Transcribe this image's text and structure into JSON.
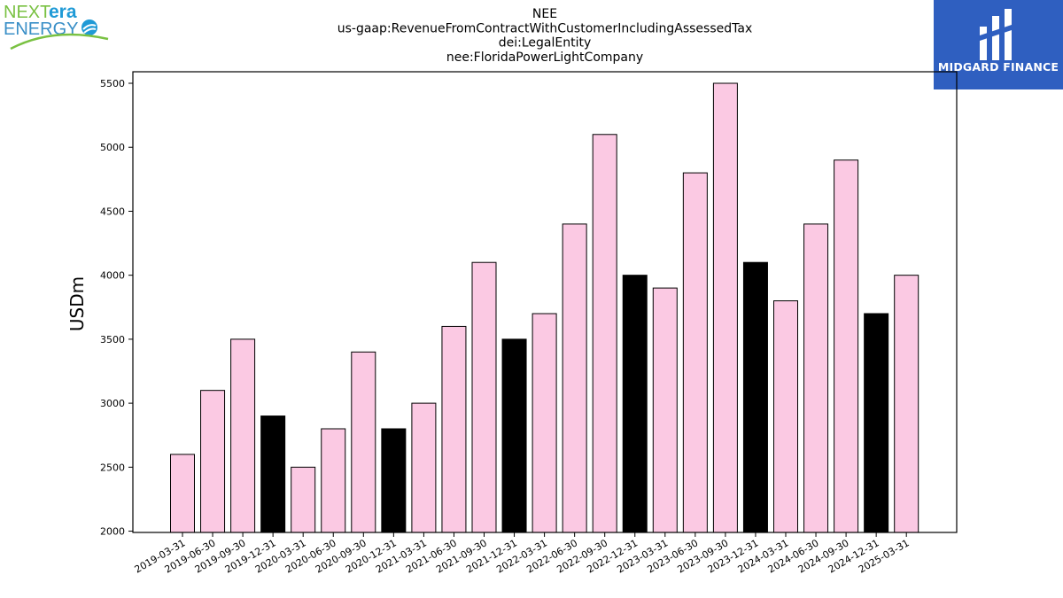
{
  "chart_data": {
    "type": "bar",
    "title_lines": [
      "NEE",
      "us-gaap:RevenueFromContractWithCustomerIncludingAssessedTax",
      "dei:LegalEntity",
      "nee:FloridaPowerLightCompany"
    ],
    "ylabel": "USDm",
    "ylim": [
      1990,
      5590
    ],
    "yticks": [
      2000,
      2500,
      3000,
      3500,
      4000,
      4500,
      5000,
      5500
    ],
    "categories": [
      "2019-03-31",
      "2019-06-30",
      "2019-09-30",
      "2019-12-31",
      "2020-03-31",
      "2020-06-30",
      "2020-09-30",
      "2020-12-31",
      "2021-03-31",
      "2021-06-30",
      "2021-09-30",
      "2021-12-31",
      "2022-03-31",
      "2022-06-30",
      "2022-09-30",
      "2022-12-31",
      "2023-03-31",
      "2023-06-30",
      "2023-09-30",
      "2023-12-31",
      "2024-03-31",
      "2024-06-30",
      "2024-09-30",
      "2024-12-31",
      "2025-03-31"
    ],
    "values": [
      2600,
      3100,
      3500,
      2900,
      2500,
      2800,
      3400,
      2800,
      3000,
      3600,
      4100,
      3500,
      3700,
      4400,
      5100,
      4000,
      3900,
      4800,
      5500,
      4100,
      3800,
      4400,
      4900,
      3700,
      4000
    ],
    "bar_colors": [
      "#fbc9e3",
      "#fbc9e3",
      "#fbc9e3",
      "#000000",
      "#fbc9e3",
      "#fbc9e3",
      "#fbc9e3",
      "#000000",
      "#fbc9e3",
      "#fbc9e3",
      "#fbc9e3",
      "#000000",
      "#fbc9e3",
      "#fbc9e3",
      "#fbc9e3",
      "#000000",
      "#fbc9e3",
      "#fbc9e3",
      "#fbc9e3",
      "#000000",
      "#fbc9e3",
      "#fbc9e3",
      "#fbc9e3",
      "#000000",
      "#fbc9e3"
    ],
    "grid": false,
    "legend": "none"
  },
  "logos": {
    "left": {
      "text_top_a": "NEXT",
      "text_top_b": "era",
      "text_bottom": "ENERGY",
      "colors": [
        "#79c142",
        "#1f9ad6"
      ]
    },
    "right": {
      "text": "MIDGARD FINANCE",
      "background": "#2f5fc0"
    }
  }
}
